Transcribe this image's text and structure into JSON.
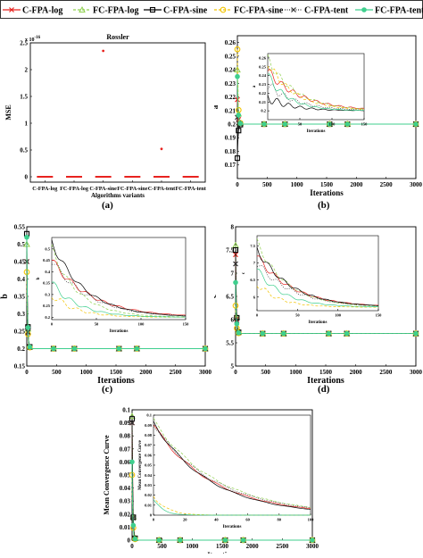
{
  "legend": {
    "items": [
      {
        "label": "C-FPA-log",
        "color": "#e8231f",
        "marker": "x",
        "dash": "solid"
      },
      {
        "label": "FC-FPA-log",
        "color": "#8fd14f",
        "marker": "triangle",
        "dash": "dash"
      },
      {
        "label": "C-FPA-sine",
        "color": "#000000",
        "marker": "square",
        "dash": "solid"
      },
      {
        "label": "FC-FPA-sine",
        "color": "#f2c400",
        "marker": "circle",
        "dash": "dash"
      },
      {
        "label": "C-FPA-tent",
        "color": "#333333",
        "marker": "x",
        "dash": "dot"
      },
      {
        "label": "FC-FPA-tent",
        "color": "#3fcf8e",
        "marker": "dot",
        "dash": "solid"
      }
    ]
  },
  "panel_labels": {
    "a": "(a)",
    "b": "(b)",
    "c": "(c)",
    "d": "(d)"
  },
  "chart_data": [
    {
      "id": "a",
      "type": "scatter",
      "title": "Rossler",
      "xlabel": "Algorithms variants",
      "ylabel": "MSE",
      "exponent": "x 10",
      "exponent_power": "-16",
      "categories": [
        "C-FPA-log",
        "FC-FPA-log",
        "C-FPA-sine",
        "FC-FPA-sine",
        "C-FPA-tent",
        "FC-FPA-tent"
      ],
      "values": [
        0,
        0,
        2.35,
        0,
        0.52,
        0
      ],
      "ylim": [
        -0.1,
        2.5
      ],
      "yticks": [
        "0",
        "0.5",
        "1",
        "1.5",
        "2",
        "2.5"
      ],
      "color": "#e8231f"
    },
    {
      "id": "b",
      "type": "line",
      "xlabel": "Iterations",
      "ylabel": "a",
      "xlim": [
        0,
        3000
      ],
      "ylim": [
        0.16,
        0.265
      ],
      "xticks": [
        "0",
        "500",
        "1000",
        "1500",
        "2000",
        "2500",
        "3000"
      ],
      "yticks": [
        "0.17",
        "0.18",
        "0.19",
        "0.2",
        "0.21",
        "0.22",
        "0.23",
        "0.24",
        "0.25",
        "0.26"
      ],
      "inset": {
        "xlabel": "Iterations",
        "ylabel": "a",
        "xlim": [
          0,
          150
        ],
        "ylim": [
          0.19,
          0.265
        ],
        "xticks": [
          "50",
          "100",
          "150"
        ],
        "yticks": [
          "0.2",
          "0.21",
          "0.22",
          "0.23",
          "0.24",
          "0.25",
          "0.26"
        ]
      }
    },
    {
      "id": "c",
      "type": "line",
      "xlabel": "Iterations",
      "ylabel": "b",
      "xlim": [
        0,
        3000
      ],
      "ylim": [
        0.15,
        0.55
      ],
      "xticks": [
        "0",
        "500",
        "1000",
        "1500",
        "2000",
        "2500",
        "3000"
      ],
      "yticks": [
        "0.15",
        "0.2",
        "0.25",
        "0.3",
        "0.35",
        "0.4",
        "0.45",
        "0.5",
        "0.55"
      ],
      "inset": {
        "xlabel": "Iterations",
        "ylabel": "b",
        "xlim": [
          0,
          150
        ],
        "ylim": [
          0.19,
          0.55
        ],
        "xticks": [
          "0",
          "50",
          "100",
          "150"
        ],
        "yticks": [
          "0.2",
          "0.25",
          "0.3",
          "0.35",
          "0.4",
          "0.45",
          "0.5"
        ]
      }
    },
    {
      "id": "d",
      "type": "line",
      "xlabel": "Iterations",
      "ylabel": "c",
      "xlim": [
        0,
        3000
      ],
      "ylim": [
        5,
        8
      ],
      "xticks": [
        "0",
        "500",
        "1000",
        "1500",
        "2000",
        "2500",
        "3000"
      ],
      "yticks": [
        "5",
        "5.5",
        "6",
        "6.5",
        "7",
        "7.5",
        "8"
      ],
      "inset": {
        "xlabel": "Iterations",
        "ylabel": "c",
        "xlim": [
          0,
          150
        ],
        "ylim": [
          5.6,
          7.8
        ],
        "xticks": [
          "0",
          "50",
          "100",
          "150"
        ],
        "yticks": [
          "5.5",
          "6",
          "6.5",
          "7",
          "7.5"
        ]
      }
    },
    {
      "id": "e",
      "type": "line",
      "xlabel": "Iterations",
      "ylabel": "Mean Convergence Curve",
      "xlim": [
        0,
        3000
      ],
      "ylim": [
        0,
        0.1
      ],
      "xticks": [
        "0",
        "500",
        "1000",
        "1500",
        "2000",
        "2500",
        "3000"
      ],
      "yticks": [
        "0",
        "0.01",
        "0.02",
        "0.03",
        "0.04",
        "0.05",
        "0.06",
        "0.07",
        "0.08",
        "0.09",
        "0.1"
      ],
      "inset": {
        "xlabel": "Iterations",
        "ylabel": "Mean Convergence Curve",
        "xlim": [
          0,
          100
        ],
        "ylim": [
          0,
          0.1
        ],
        "xticks": [
          "0",
          "20",
          "40",
          "60",
          "80",
          "100"
        ],
        "yticks": [
          "0",
          "0.01",
          "0.02",
          "0.03",
          "0.04",
          "0.05",
          "0.06",
          "0.07",
          "0.08",
          "0.09",
          "0.1"
        ]
      }
    }
  ]
}
